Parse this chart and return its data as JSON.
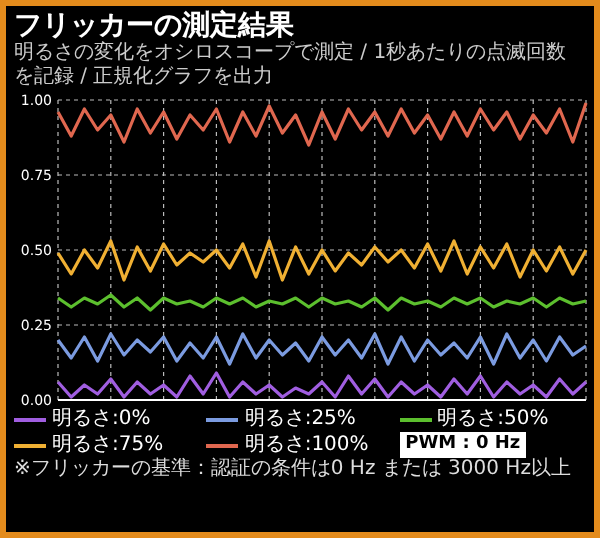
{
  "chart_data": {
    "type": "line",
    "title": "フリッカーの測定結果",
    "subtitle": "明るさの変化をオシロスコープで測定 / 1秒あたりの点滅回数を記録 / 正規化グラフを出力",
    "annotations": [
      "※フリッカーの基準：認証の条件は0 Hz または 3000 Hz以上",
      "PWM : 0 Hz"
    ],
    "categories": [
      null,
      null,
      null,
      null,
      null,
      null,
      null,
      null,
      null,
      null,
      null,
      null,
      null,
      null,
      null,
      null,
      null,
      null,
      null,
      null,
      null,
      null,
      null,
      null,
      null,
      null,
      null,
      null,
      null,
      null,
      null,
      null,
      null,
      null,
      null,
      null,
      null,
      null,
      null,
      null,
      null
    ],
    "ylim": [
      0,
      1
    ],
    "yticks": [
      {
        "value": 0,
        "label": "0.00"
      },
      {
        "value": 0.25,
        "label": "0.25"
      },
      {
        "value": 0.5,
        "label": "0.50"
      },
      {
        "value": 0.75,
        "label": "0.75"
      },
      {
        "value": 1,
        "label": "1.00"
      }
    ],
    "series": [
      {
        "name": "明るさ:0%",
        "color": "#a05ee0",
        "values": [
          0.06,
          0.01,
          0.05,
          0.02,
          0.07,
          0.01,
          0.06,
          0.02,
          0.05,
          0.01,
          0.08,
          0.02,
          0.09,
          0.01,
          0.06,
          0.02,
          0.05,
          0.01,
          0.04,
          0.02,
          0.06,
          0.01,
          0.08,
          0.02,
          0.07,
          0.01,
          0.06,
          0.02,
          0.05,
          0.01,
          0.07,
          0.02,
          0.08,
          0.01,
          0.06,
          0.02,
          0.05,
          0.01,
          0.07,
          0.02,
          0.06
        ]
      },
      {
        "name": "明るさ:25%",
        "color": "#7b9be0",
        "values": [
          0.2,
          0.14,
          0.21,
          0.13,
          0.22,
          0.15,
          0.2,
          0.16,
          0.21,
          0.13,
          0.19,
          0.14,
          0.21,
          0.12,
          0.22,
          0.14,
          0.2,
          0.15,
          0.19,
          0.13,
          0.21,
          0.15,
          0.2,
          0.14,
          0.22,
          0.12,
          0.21,
          0.13,
          0.2,
          0.15,
          0.19,
          0.14,
          0.21,
          0.12,
          0.22,
          0.14,
          0.2,
          0.13,
          0.21,
          0.15,
          0.18
        ]
      },
      {
        "name": "明るさ:50%",
        "color": "#5cbf2e",
        "values": [
          0.34,
          0.31,
          0.34,
          0.32,
          0.35,
          0.31,
          0.34,
          0.3,
          0.34,
          0.32,
          0.33,
          0.31,
          0.34,
          0.32,
          0.34,
          0.31,
          0.33,
          0.32,
          0.34,
          0.31,
          0.34,
          0.32,
          0.33,
          0.31,
          0.34,
          0.3,
          0.34,
          0.32,
          0.33,
          0.31,
          0.34,
          0.32,
          0.34,
          0.31,
          0.33,
          0.32,
          0.34,
          0.31,
          0.34,
          0.32,
          0.33
        ]
      },
      {
        "name": "明るさ:75%",
        "color": "#f0b033",
        "values": [
          0.49,
          0.42,
          0.5,
          0.44,
          0.53,
          0.4,
          0.51,
          0.43,
          0.52,
          0.45,
          0.49,
          0.46,
          0.5,
          0.44,
          0.52,
          0.41,
          0.53,
          0.4,
          0.51,
          0.42,
          0.5,
          0.43,
          0.49,
          0.45,
          0.51,
          0.46,
          0.5,
          0.44,
          0.52,
          0.43,
          0.53,
          0.42,
          0.51,
          0.44,
          0.52,
          0.41,
          0.5,
          0.43,
          0.51,
          0.42,
          0.5
        ]
      },
      {
        "name": "明るさ:100%",
        "color": "#e0674f",
        "values": [
          0.96,
          0.88,
          0.97,
          0.9,
          0.95,
          0.86,
          0.97,
          0.89,
          0.96,
          0.87,
          0.95,
          0.9,
          0.97,
          0.86,
          0.96,
          0.88,
          0.98,
          0.89,
          0.95,
          0.85,
          0.96,
          0.87,
          0.97,
          0.9,
          0.96,
          0.88,
          0.97,
          0.89,
          0.95,
          0.87,
          0.96,
          0.88,
          0.97,
          0.9,
          0.96,
          0.87,
          0.95,
          0.89,
          0.97,
          0.86,
          0.99
        ]
      }
    ],
    "grid": true,
    "legend": "bottom",
    "marker": "none",
    "line_style": "solid",
    "tick_labels": "y"
  }
}
